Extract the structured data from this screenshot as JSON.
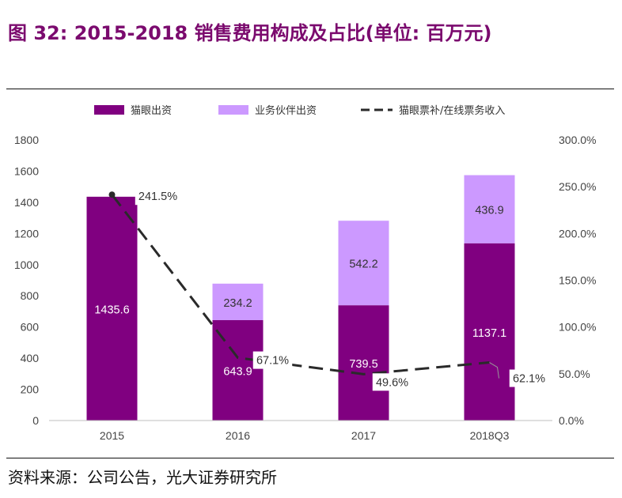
{
  "header": {
    "title": "图 32: 2015-2018 销售费用构成及占比(单位: 百万元)"
  },
  "footer": {
    "source": "资料来源：公司公告，光大证券研究所"
  },
  "colors": {
    "bar_primary": "#800080",
    "bar_secondary": "#cc99ff",
    "line": "#2a2a2a",
    "title": "#7b0a6e"
  },
  "chart_data": {
    "type": "bar",
    "stacked": true,
    "categories": [
      "2015",
      "2016",
      "2017",
      "2018Q3"
    ],
    "series": [
      {
        "name": "猫眼出资",
        "kind": "bar",
        "values": [
          1435.6,
          643.9,
          739.5,
          1137.1
        ],
        "value_labels": [
          "1435.6",
          "643.9",
          "739.5",
          "1137.1"
        ]
      },
      {
        "name": "业务伙伴出资",
        "kind": "bar",
        "values": [
          0,
          234.2,
          542.2,
          436.9
        ],
        "value_labels": [
          "",
          "234.2",
          "542.2",
          "436.9"
        ]
      },
      {
        "name": "猫眼票补/在线票务收入",
        "kind": "line",
        "axis": "right",
        "values": [
          241.5,
          67.1,
          49.6,
          62.1
        ],
        "value_labels": [
          "241.5%",
          "67.1%",
          "49.6%",
          "62.1%"
        ]
      }
    ],
    "y_left": {
      "min": 0,
      "max": 1800,
      "step": 200,
      "tick_labels": [
        "0",
        "200",
        "400",
        "600",
        "800",
        "1000",
        "1200",
        "1400",
        "1600",
        "1800"
      ]
    },
    "y_right": {
      "min": 0,
      "max": 300,
      "step": 50,
      "tick_labels": [
        "0.0%",
        "50.0%",
        "100.0%",
        "150.0%",
        "200.0%",
        "250.0%",
        "300.0%"
      ]
    },
    "legend_position": "top"
  }
}
